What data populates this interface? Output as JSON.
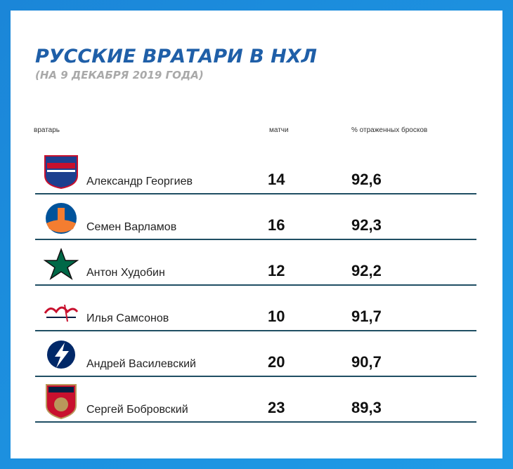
{
  "header": {
    "title": "РУССКИЕ ВРАТАРИ В НХЛ",
    "subtitle": "(НА 9 ДЕКАБРЯ 2019 ГОДА)"
  },
  "table": {
    "columns": [
      "вратарь",
      "матчи",
      "% отраженных бросков"
    ],
    "rows": [
      [
        "Александр Георгиев",
        "14",
        "92,6"
      ],
      [
        "Семен Варламов",
        "16",
        "92,3"
      ],
      [
        "Антон Худобин",
        "12",
        "92,2"
      ],
      [
        "Илья Самсонов",
        "10",
        "91,7"
      ],
      [
        "Андрей Василевский",
        "20",
        "90,7"
      ],
      [
        "Сергей Бобровский",
        "23",
        "89,3"
      ]
    ]
  }
}
